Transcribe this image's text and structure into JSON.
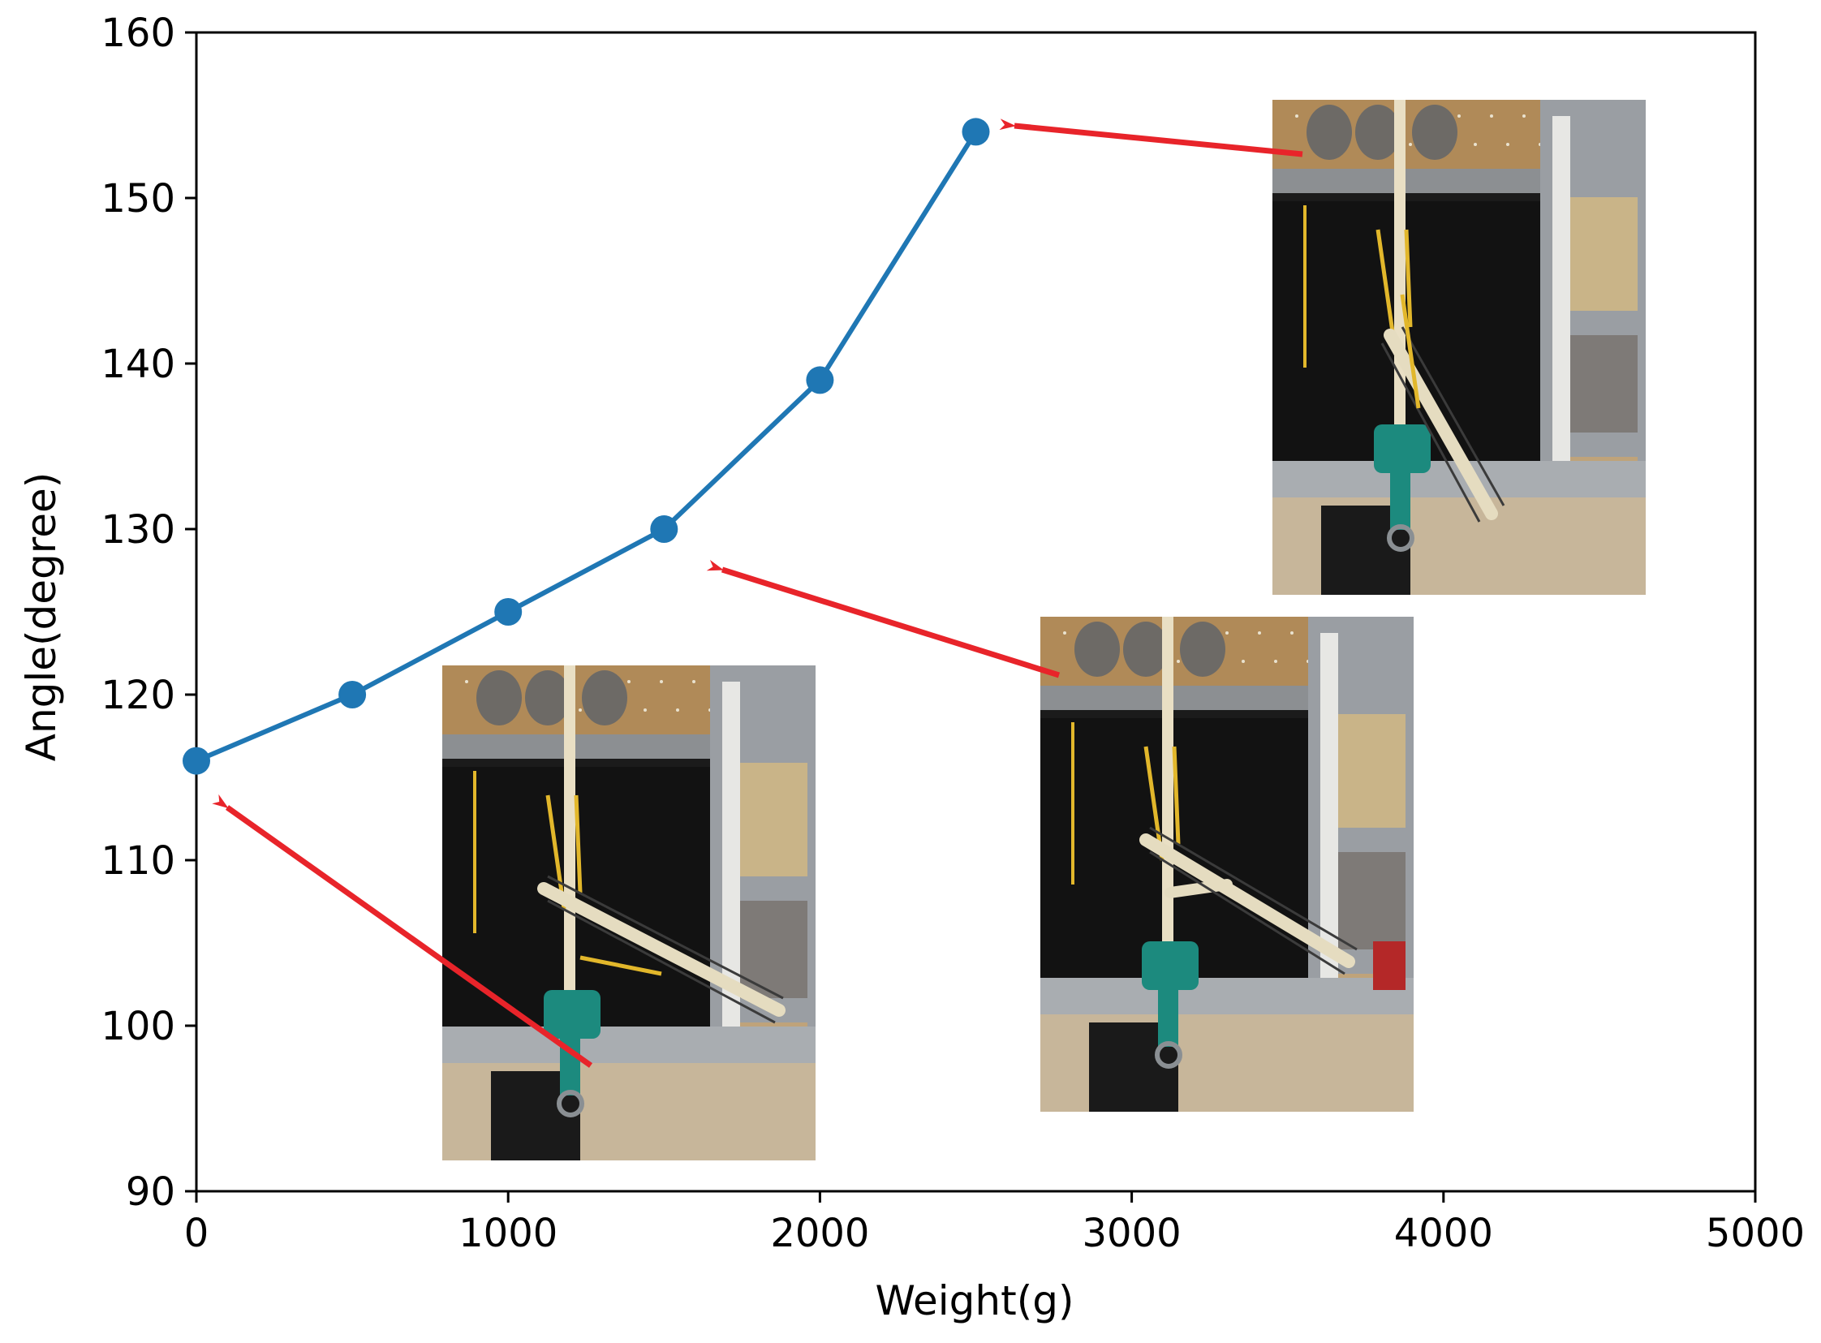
{
  "chart_data": {
    "type": "line",
    "xlabel": "Weight(g)",
    "ylabel": "Angle(degree)",
    "xlim": [
      0,
      5000
    ],
    "ylim": [
      90,
      160
    ],
    "xticks": [
      0,
      1000,
      2000,
      3000,
      4000,
      5000
    ],
    "yticks": [
      90,
      100,
      110,
      120,
      130,
      140,
      150,
      160
    ],
    "grid": false,
    "series": [
      {
        "color": "#1f77b4",
        "x": [
          0,
          500,
          1000,
          1500,
          2000,
          2500
        ],
        "y": [
          116,
          120,
          125,
          130,
          139,
          154
        ]
      }
    ],
    "annotations": [
      {
        "kind": "photo-inset",
        "description": "test rig photo with arm nearly horizontal",
        "arrow_to": {
          "x": 0,
          "y": 116
        }
      },
      {
        "kind": "photo-inset",
        "description": "test rig photo with arm at medium angle",
        "arrow_to": {
          "x": 1500,
          "y": 130
        }
      },
      {
        "kind": "photo-inset",
        "description": "test rig photo with arm nearly vertical",
        "arrow_to": {
          "x": 2500,
          "y": 154
        }
      }
    ],
    "arrow_color": "#e8242a"
  }
}
